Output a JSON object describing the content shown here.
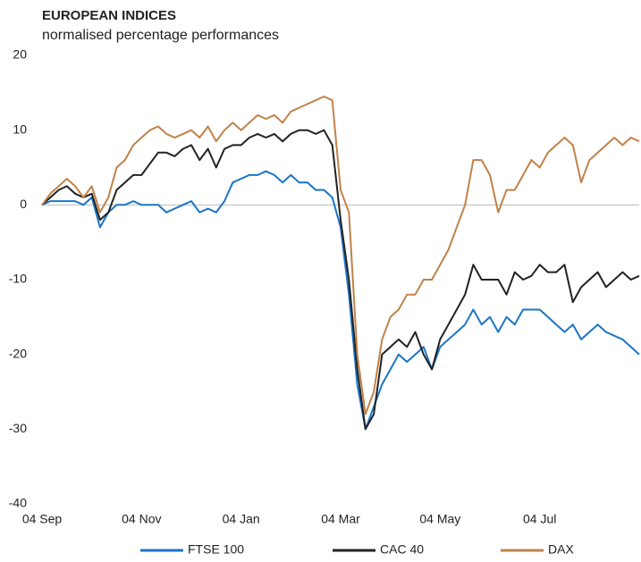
{
  "chart_data": {
    "type": "line",
    "title": "EUROPEAN INDICES",
    "subtitle": "normalised percentage performances",
    "categories": [
      "04 Sep",
      null,
      null,
      null,
      null,
      null,
      null,
      null,
      null,
      null,
      null,
      null,
      "04 Nov",
      null,
      null,
      null,
      null,
      null,
      null,
      null,
      null,
      null,
      null,
      null,
      "04 Jan",
      null,
      null,
      null,
      null,
      null,
      null,
      null,
      null,
      null,
      null,
      null,
      "04 Mar",
      null,
      null,
      null,
      null,
      null,
      null,
      null,
      null,
      null,
      null,
      null,
      "04 May",
      null,
      null,
      null,
      null,
      null,
      null,
      null,
      null,
      null,
      null,
      null,
      "04 Jul",
      null,
      null,
      null,
      null,
      null,
      null,
      null,
      null,
      null,
      null,
      null,
      null
    ],
    "series": [
      {
        "name": "FTSE 100",
        "color": "#1a75c6",
        "values": [
          0,
          0.5,
          0.5,
          0.5,
          0.5,
          0,
          1,
          -3,
          -1,
          0,
          0,
          0.5,
          0,
          0,
          0,
          -1,
          -0.5,
          0,
          0.5,
          -1,
          -0.5,
          -1,
          0.5,
          3,
          3.5,
          4,
          4,
          4.5,
          4,
          3,
          4,
          3,
          3,
          2,
          2,
          1,
          -3,
          -12,
          -24,
          -30,
          -27,
          -24,
          -22,
          -20,
          -21,
          -20,
          -19,
          -22,
          -19,
          -18,
          -17,
          -16,
          -14,
          -16,
          -15,
          -17,
          -15,
          -16,
          -14,
          -14,
          -14,
          -15,
          -16,
          -17,
          -16,
          -18,
          -17,
          -16,
          -17,
          -17.5,
          -18,
          -19,
          -20
        ]
      },
      {
        "name": "CAC 40",
        "color": "#222222",
        "values": [
          0,
          1,
          2,
          2.5,
          1.5,
          1,
          1.5,
          -2,
          -1,
          2,
          3,
          4,
          4,
          5.5,
          7,
          7,
          6.5,
          7.5,
          8,
          6,
          7.5,
          5,
          7.5,
          8,
          8,
          9,
          9.5,
          9,
          9.5,
          8.5,
          9.5,
          10,
          10,
          9.5,
          10,
          8,
          -2,
          -10,
          -22,
          -30,
          -28,
          -20,
          -19,
          -18,
          -19,
          -17,
          -20,
          -22,
          -18,
          -16,
          -14,
          -12,
          -8,
          -10,
          -10,
          -10,
          -12,
          -9,
          -10,
          -9.5,
          -8,
          -9,
          -9,
          -8,
          -13,
          -11,
          -10,
          -9,
          -11,
          -10,
          -9,
          -10,
          -9.5
        ]
      },
      {
        "name": "DAX",
        "color": "#c0824a",
        "values": [
          0,
          1.5,
          2.5,
          3.5,
          2.5,
          1,
          2.5,
          -1,
          1,
          5,
          6,
          8,
          9,
          10,
          10.5,
          9.5,
          9,
          9.5,
          10,
          9,
          10.5,
          8.5,
          10,
          11,
          10,
          11,
          12,
          11.5,
          12,
          11,
          12.5,
          13,
          13.5,
          14,
          14.5,
          14,
          2,
          -1,
          -20,
          -28,
          -25,
          -18,
          -15,
          -14,
          -12,
          -12,
          -10,
          -10,
          -8,
          -6,
          -3,
          0,
          6,
          6,
          4,
          -1,
          2,
          2,
          4,
          6,
          5,
          7,
          8,
          9,
          8,
          3,
          6,
          7,
          8,
          9,
          8,
          9,
          8.5
        ]
      }
    ],
    "ylim": [
      -40,
      20
    ],
    "yticks": [
      -40,
      -30,
      -20,
      -10,
      0,
      10,
      20
    ],
    "grid": false
  }
}
